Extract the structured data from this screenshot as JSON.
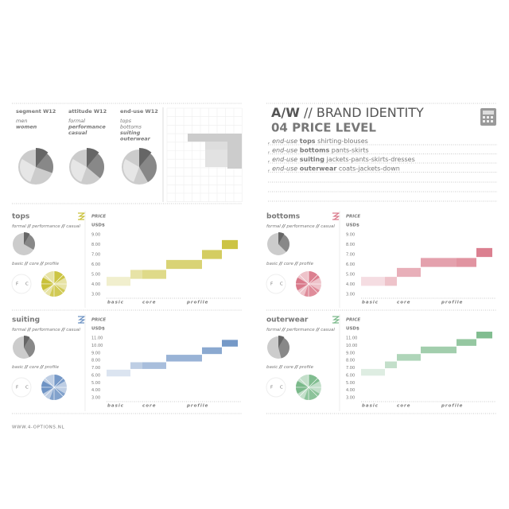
{
  "left_header": {
    "columns": [
      {
        "title": "segment W12",
        "items": [
          {
            "text": "men",
            "bold": false
          },
          {
            "text": "women",
            "bold": true
          }
        ]
      },
      {
        "title": "attitude W12",
        "items": [
          {
            "text": "formal",
            "bold": false
          },
          {
            "text": "performance",
            "bold": true
          },
          {
            "text": "casual",
            "bold": true
          }
        ]
      },
      {
        "title": "end-use W12",
        "items": [
          {
            "text": "tops",
            "bold": false
          },
          {
            "text": "bottoms",
            "bold": false
          },
          {
            "text": "suiting",
            "bold": true
          },
          {
            "text": "outerwear",
            "bold": true
          }
        ]
      }
    ]
  },
  "separator": "//",
  "brand": {
    "season": "A/W",
    "title": "BRAND IDENTITY",
    "subtitle": "04 PRICE LEVEL",
    "lines": [
      {
        "prefix": ", end-use",
        "key": "tops",
        "rest": "shirting-blouses"
      },
      {
        "prefix": ", end-use",
        "key": "bottoms",
        "rest": "pants-skirts"
      },
      {
        "prefix": ", end-use",
        "key": "suiting",
        "rest": "jackets-pants-skirts-dresses"
      },
      {
        "prefix": ", end-use",
        "key": "outerwear",
        "rest": "coats-jackets-down"
      }
    ]
  },
  "panels": [
    {
      "name": "tops",
      "color": "#c9c13a",
      "attitude": [
        "formal",
        "performance",
        "casual"
      ],
      "levels": [
        "basic",
        "core",
        "profile"
      ],
      "fc": [
        "F",
        "C"
      ],
      "price_label": "PRICE",
      "currency": "USD$",
      "yticks": [
        "9.00",
        "8.00",
        "7.00",
        "6.00",
        "5.00",
        "4.00",
        "3.00"
      ],
      "steps": [
        4.3,
        5.0,
        5.0,
        6.0,
        7.0,
        8.0
      ],
      "x_labels": [
        "basic",
        "core",
        "profile"
      ]
    },
    {
      "name": "bottoms",
      "color": "#d9798a",
      "attitude": [
        "formal",
        "performance",
        "casual"
      ],
      "levels": [
        "basic",
        "core",
        "profile"
      ],
      "fc": [
        "F",
        "C"
      ],
      "price_label": "PRICE",
      "currency": "USD$",
      "yticks": [
        "9.00",
        "8.00",
        "7.00",
        "6.00",
        "5.00",
        "4.00",
        "3.00"
      ],
      "steps": [
        4.3,
        4.3,
        5.2,
        6.2,
        6.2,
        7.2
      ],
      "x_labels": [
        "basic",
        "core",
        "profile"
      ]
    },
    {
      "name": "suiting",
      "color": "#6e93c4",
      "attitude": [
        "formal",
        "performance",
        "casual"
      ],
      "levels": [
        "basic",
        "core",
        "profile"
      ],
      "fc": [
        "F",
        "C"
      ],
      "price_label": "PRICE",
      "currency": "USD$",
      "yticks": [
        "11.00",
        "10.00",
        "9.00",
        "8.00",
        "7.00",
        "6.00",
        "5.00",
        "4.00",
        "3.00"
      ],
      "steps": [
        6.3,
        7.3,
        7.3,
        8.3,
        9.3,
        10.3
      ],
      "x_labels": [
        "basic",
        "core",
        "profile"
      ]
    },
    {
      "name": "outerwear",
      "color": "#7ab98a",
      "attitude": [
        "formal",
        "performance",
        "casual"
      ],
      "levels": [
        "basic",
        "core",
        "profile"
      ],
      "fc": [
        "F",
        "C"
      ],
      "price_label": "PRICE",
      "currency": "USD$",
      "yticks": [
        "11.00",
        "10.00",
        "9.00",
        "8.00",
        "7.00",
        "6.00",
        "5.00",
        "4.00",
        "3.00"
      ],
      "steps": [
        6.4,
        7.4,
        8.4,
        9.4,
        10.4,
        11.4
      ],
      "x_labels": [
        "basic",
        "core",
        "profile"
      ]
    }
  ],
  "footer": "WWW.4-OPTIONS.NL"
}
